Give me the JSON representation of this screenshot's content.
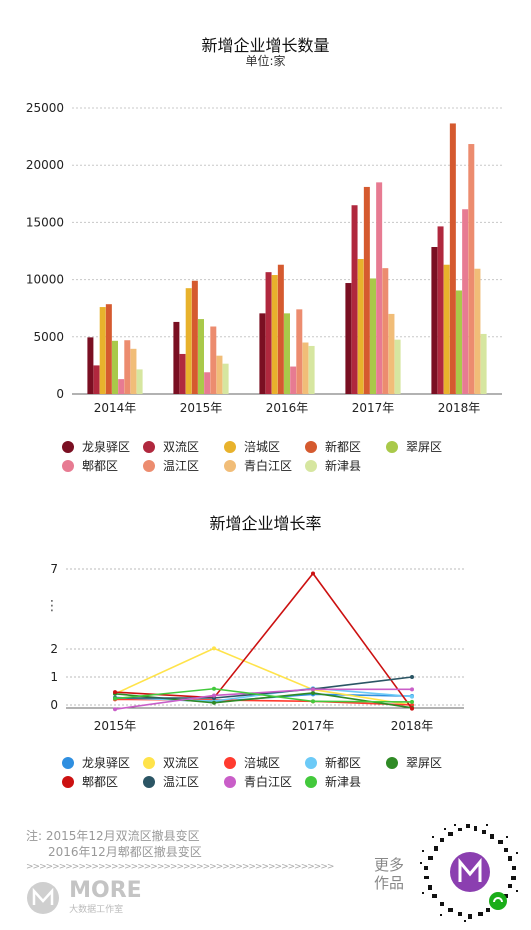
{
  "chart_data": [
    {
      "type": "bar",
      "title": "新增企业增长数量",
      "subtitle": "单位:家",
      "categories": [
        "2014年",
        "2015年",
        "2016年",
        "2017年",
        "2018年"
      ],
      "ylim": [
        0,
        25000
      ],
      "yticks": [
        "0",
        "5000",
        "10000",
        "15000",
        "20000",
        "25000"
      ],
      "grid": true,
      "legend_position": "bottom",
      "series": [
        {
          "name": "龙泉驿区",
          "color": "#7a0f22",
          "values": [
            4950,
            6300,
            7050,
            9700,
            12850
          ]
        },
        {
          "name": "双流区",
          "color": "#b0283e",
          "values": [
            2500,
            3500,
            10650,
            16500,
            14650
          ]
        },
        {
          "name": "涪城区",
          "color": "#e8b22c",
          "values": [
            7600,
            9250,
            10400,
            11800,
            11300
          ]
        },
        {
          "name": "新都区",
          "color": "#d55a2f",
          "values": [
            7850,
            9900,
            11300,
            18100,
            23650
          ]
        },
        {
          "name": "翠屏区",
          "color": "#a9c94a",
          "values": [
            4650,
            6550,
            7050,
            10100,
            9050
          ]
        },
        {
          "name": "郫都区",
          "color": "#e77b92",
          "values": [
            1300,
            1900,
            2400,
            18500,
            16150
          ]
        },
        {
          "name": "温江区",
          "color": "#ec8c6f",
          "values": [
            4700,
            5900,
            7400,
            11000,
            21850
          ]
        },
        {
          "name": "青白江区",
          "color": "#f1bd78",
          "values": [
            3950,
            3350,
            4500,
            7000,
            10950
          ]
        },
        {
          "name": "新津县",
          "color": "#d6e6a0",
          "values": [
            2150,
            2650,
            4200,
            4750,
            5250
          ]
        }
      ]
    },
    {
      "type": "line",
      "title": "新增企业增长率",
      "categories": [
        "2015年",
        "2016年",
        "2017年",
        "2018年"
      ],
      "yticks": [
        "0",
        "1",
        "2",
        "7"
      ],
      "axis_break": "⋮",
      "grid": true,
      "legend_position": "bottom",
      "series": [
        {
          "name": "龙泉驿区",
          "color": "#2f8fe0",
          "values": [
            0.27,
            0.12,
            0.38,
            0.32
          ]
        },
        {
          "name": "双流区",
          "color": "#ffe34a",
          "values": [
            0.4,
            2.04,
            0.55,
            0.0
          ]
        },
        {
          "name": "涪城区",
          "color": "#ff3b2f",
          "values": [
            0.2,
            0.18,
            0.13,
            0.0
          ]
        },
        {
          "name": "新都区",
          "color": "#6ccaf7",
          "values": [
            0.26,
            0.14,
            0.6,
            0.3
          ]
        },
        {
          "name": "翠屏区",
          "color": "#2f8a25",
          "values": [
            0.4,
            0.08,
            0.43,
            -0.1
          ]
        },
        {
          "name": "郫都区",
          "color": "#cc1111",
          "values": [
            0.46,
            0.26,
            6.72,
            -0.13
          ]
        },
        {
          "name": "温江区",
          "color": "#2b5564",
          "values": [
            0.25,
            0.25,
            0.57,
            1.0
          ]
        },
        {
          "name": "青白江区",
          "color": "#c95ec8",
          "values": [
            -0.15,
            0.34,
            0.56,
            0.56
          ]
        },
        {
          "name": "新津县",
          "color": "#43c93c",
          "values": [
            0.23,
            0.58,
            0.13,
            0.11
          ]
        }
      ]
    }
  ],
  "footer": {
    "note_line1": "注: 2015年12月双流区撤县变区",
    "note_line2": "2016年12月郫都区撤县变区",
    "arrows": ">>>>>>>>>>>>>>>>>>>>>>>>>>>>>>>>>>>>>>>>>>>>>>>",
    "logo_text": "MORE",
    "logo_sub": "大数据工作室",
    "more_line1": "更多",
    "more_line2": "作品"
  }
}
